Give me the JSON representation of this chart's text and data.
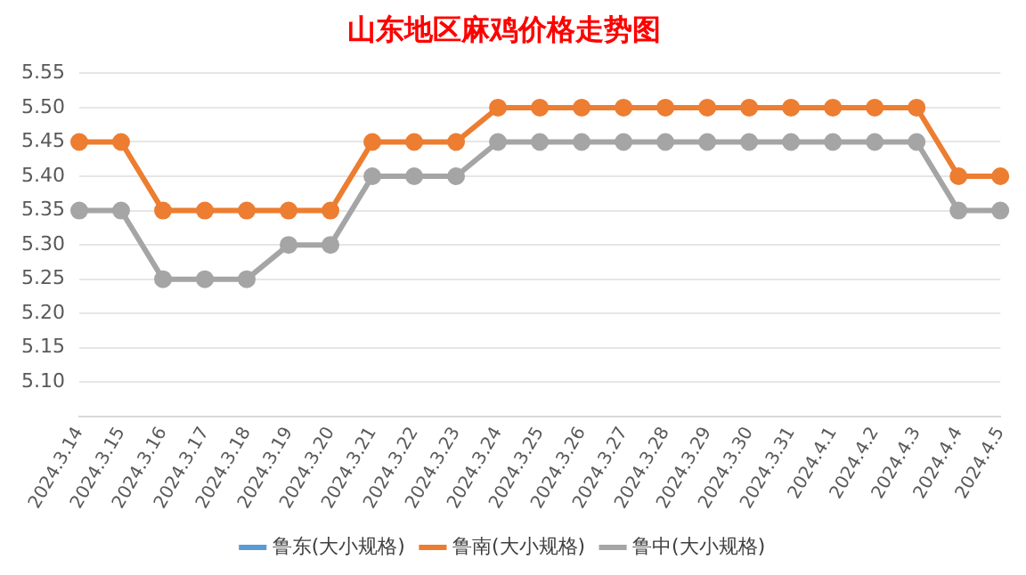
{
  "chart_data": {
    "type": "line",
    "title": "山东地区麻鸡价格走势图",
    "categories": [
      "2024.3.14",
      "2024.3.15",
      "2024.3.16",
      "2024.3.17",
      "2024.3.18",
      "2024.3.19",
      "2024.3.20",
      "2024.3.21",
      "2024.3.22",
      "2024.3.23",
      "2024.3.24",
      "2024.3.25",
      "2024.3.26",
      "2024.3.27",
      "2024.3.28",
      "2024.3.29",
      "2024.3.30",
      "2024.3.31",
      "2024.4.1",
      "2024.4.2",
      "2024.4.3",
      "2024.4.4",
      "2024.4.5"
    ],
    "series": [
      {
        "name": "鲁东(大小规格)",
        "color": "#5b9bd5",
        "values": [
          null,
          null,
          null,
          null,
          null,
          null,
          null,
          null,
          null,
          null,
          null,
          null,
          null,
          null,
          null,
          null,
          null,
          null,
          null,
          null,
          null,
          null,
          null
        ]
      },
      {
        "name": "鲁南(大小规格)",
        "color": "#ed7d31",
        "values": [
          5.45,
          5.45,
          5.35,
          5.35,
          5.35,
          5.35,
          5.35,
          5.45,
          5.45,
          5.45,
          5.5,
          5.5,
          5.5,
          5.5,
          5.5,
          5.5,
          5.5,
          5.5,
          5.5,
          5.5,
          5.5,
          5.4,
          5.4
        ]
      },
      {
        "name": "鲁中(大小规格)",
        "color": "#a5a5a5",
        "values": [
          5.35,
          5.35,
          5.25,
          5.25,
          5.25,
          5.3,
          5.3,
          5.4,
          5.4,
          5.4,
          5.45,
          5.45,
          5.45,
          5.45,
          5.45,
          5.45,
          5.45,
          5.45,
          5.45,
          5.45,
          5.45,
          5.35,
          5.35
        ]
      }
    ],
    "ylim": [
      5.05,
      5.55
    ],
    "yticks": [
      {
        "value": 5.05,
        "label": null
      },
      {
        "value": 5.1,
        "label": "5.10"
      },
      {
        "value": 5.15,
        "label": "5.15"
      },
      {
        "value": 5.2,
        "label": "5.20"
      },
      {
        "value": 5.25,
        "label": "5.25"
      },
      {
        "value": 5.3,
        "label": "5.30"
      },
      {
        "value": 5.35,
        "label": "5.35"
      },
      {
        "value": 5.4,
        "label": "5.40"
      },
      {
        "value": 5.45,
        "label": "5.45"
      },
      {
        "value": 5.5,
        "label": "5.50"
      },
      {
        "value": 5.55,
        "label": "5.55"
      }
    ],
    "grid": "y",
    "legend": "bottom",
    "marker": "circle",
    "line_style": "solid"
  }
}
